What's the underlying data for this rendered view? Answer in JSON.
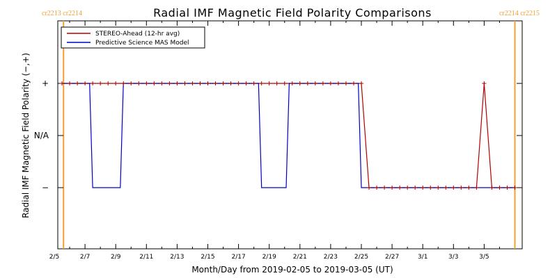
{
  "chart_data": {
    "type": "line",
    "title": "Radial IMF Magnetic Field Polarity Comparisons",
    "xlabel": "Month/Day from 2019-02-05 to 2019-03-05 (UT)",
    "ylabel": "Radial IMF Magnetic Field Polarity (−,+)",
    "x_axis": {
      "start": "2019-02-05",
      "end": "2019-03-05",
      "range_days": [
        0,
        30
      ]
    },
    "x_ticks": [
      "2/5",
      "2/7",
      "2/9",
      "2/11",
      "2/13",
      "2/15",
      "2/17",
      "2/19",
      "2/21",
      "2/23",
      "2/25",
      "2/27",
      "3/1",
      "3/3",
      "3/5"
    ],
    "y_ticks": [
      {
        "value": 1,
        "label": "+"
      },
      {
        "value": 0,
        "label": "N/A"
      },
      {
        "value": -1,
        "label": "−"
      }
    ],
    "ylim": [
      -2,
      2
    ],
    "legend": {
      "position": "top-left"
    },
    "series": [
      {
        "name": "STEREO-Ahead (12-hr avg)",
        "color": "#b00000",
        "markers": "plus",
        "x": [
          0.5,
          1,
          1.5,
          2,
          2.5,
          3,
          3.5,
          4,
          4.5,
          5,
          5.5,
          6,
          6.5,
          7,
          7.5,
          8,
          8.5,
          9,
          9.5,
          10,
          10.5,
          11,
          11.5,
          12,
          12.5,
          13,
          13.5,
          14,
          14.5,
          15,
          15.5,
          16,
          16.5,
          17,
          17.5,
          18,
          18.5,
          19,
          19.5,
          20,
          20.5,
          21,
          21.5,
          22,
          22.5,
          23,
          23.5,
          24,
          24.5,
          25,
          25.5,
          26,
          26.5,
          27,
          27.5,
          28,
          28.5,
          29,
          29.5,
          30
        ],
        "y": [
          1,
          1,
          1,
          1,
          1,
          1,
          1,
          1,
          1,
          1,
          1,
          1,
          1,
          1,
          1,
          1,
          1,
          1,
          1,
          1,
          1,
          1,
          1,
          1,
          1,
          1,
          1,
          1,
          1,
          1,
          1,
          1,
          1,
          1,
          1,
          1,
          1,
          1,
          1,
          1,
          -1,
          -1,
          -1,
          -1,
          -1,
          -1,
          -1,
          -1,
          -1,
          -1,
          -1,
          -1,
          -1,
          -1,
          -1,
          1,
          -1,
          -1,
          -1,
          -1
        ]
      },
      {
        "name": "Predictive Science MAS Model",
        "color": "#0000c0",
        "x": [
          0.5,
          2.3,
          2.5,
          4.3,
          4.5,
          13.3,
          13.5,
          15.1,
          15.3,
          19.8,
          20.0,
          20.2,
          30
        ],
        "y": [
          1,
          1,
          -1,
          -1,
          1,
          1,
          -1,
          -1,
          1,
          1,
          -1,
          -1,
          -1
        ]
      }
    ],
    "carrington_markers": [
      {
        "x": 0.6,
        "color": "#f0a030",
        "label": "cr2213 cr2214",
        "label_side": "left"
      },
      {
        "x": 30.0,
        "color": "#f0a030",
        "label": "cr2214 cr2215",
        "label_side": "right"
      }
    ]
  }
}
